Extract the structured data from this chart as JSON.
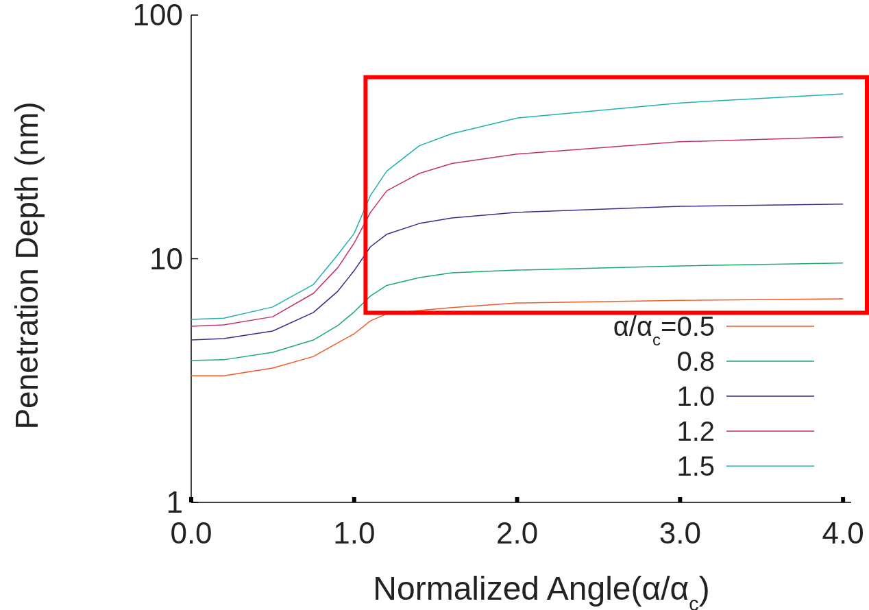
{
  "chart_data": {
    "type": "line",
    "xlabel": "Normalized Angle(α/α$_{c}$)",
    "ylabel": "Penetration Depth (nm)",
    "log": "y",
    "xlim": [
      0,
      4.05
    ],
    "ylim": [
      1,
      100
    ],
    "xticks": [
      {
        "value": 0,
        "label": "0.0"
      },
      {
        "value": 1,
        "label": "1.0"
      },
      {
        "value": 2,
        "label": "2.0"
      },
      {
        "value": 3,
        "label": "3.0"
      },
      {
        "value": 4,
        "label": "4.0"
      }
    ],
    "yticks": [
      1,
      10,
      100
    ],
    "grid": false,
    "legend": "bottom right",
    "marker": "none",
    "line_style": "solid",
    "x": [
      0,
      0.2,
      0.5,
      0.75,
      0.9,
      1.0,
      1.1,
      1.2,
      1.4,
      1.6,
      2,
      3,
      4
    ],
    "series": [
      {
        "name": "α/α$_{c}$=0.5",
        "color": "#f05a28",
        "values": [
          3.31,
          3.31,
          3.56,
          3.97,
          4.52,
          4.92,
          5.56,
          5.94,
          6.13,
          6.3,
          6.58,
          6.75,
          6.85
        ]
      },
      {
        "name": "0.8",
        "color": "#1aaa6a",
        "values": [
          3.82,
          3.85,
          4.13,
          4.64,
          5.32,
          6.05,
          7.03,
          7.77,
          8.37,
          8.76,
          8.98,
          9.34,
          9.6
        ]
      },
      {
        "name": "1.0",
        "color": "#3a2a8a",
        "values": [
          4.64,
          4.7,
          5.05,
          6.02,
          7.36,
          8.94,
          11.2,
          12.6,
          13.95,
          14.7,
          15.5,
          16.4,
          16.75
        ]
      },
      {
        "name": "1.2",
        "color": "#c03070",
        "values": [
          5.28,
          5.35,
          5.78,
          7.21,
          9.2,
          11.6,
          15.5,
          19.0,
          22.4,
          24.6,
          26.9,
          30.2,
          31.6
        ]
      },
      {
        "name": "1.5",
        "color": "#20b0b0",
        "values": [
          5.64,
          5.7,
          6.34,
          7.84,
          10.4,
          12.7,
          18.2,
          22.9,
          29.1,
          32.6,
          37.8,
          43.6,
          47.5
        ]
      }
    ]
  }
}
